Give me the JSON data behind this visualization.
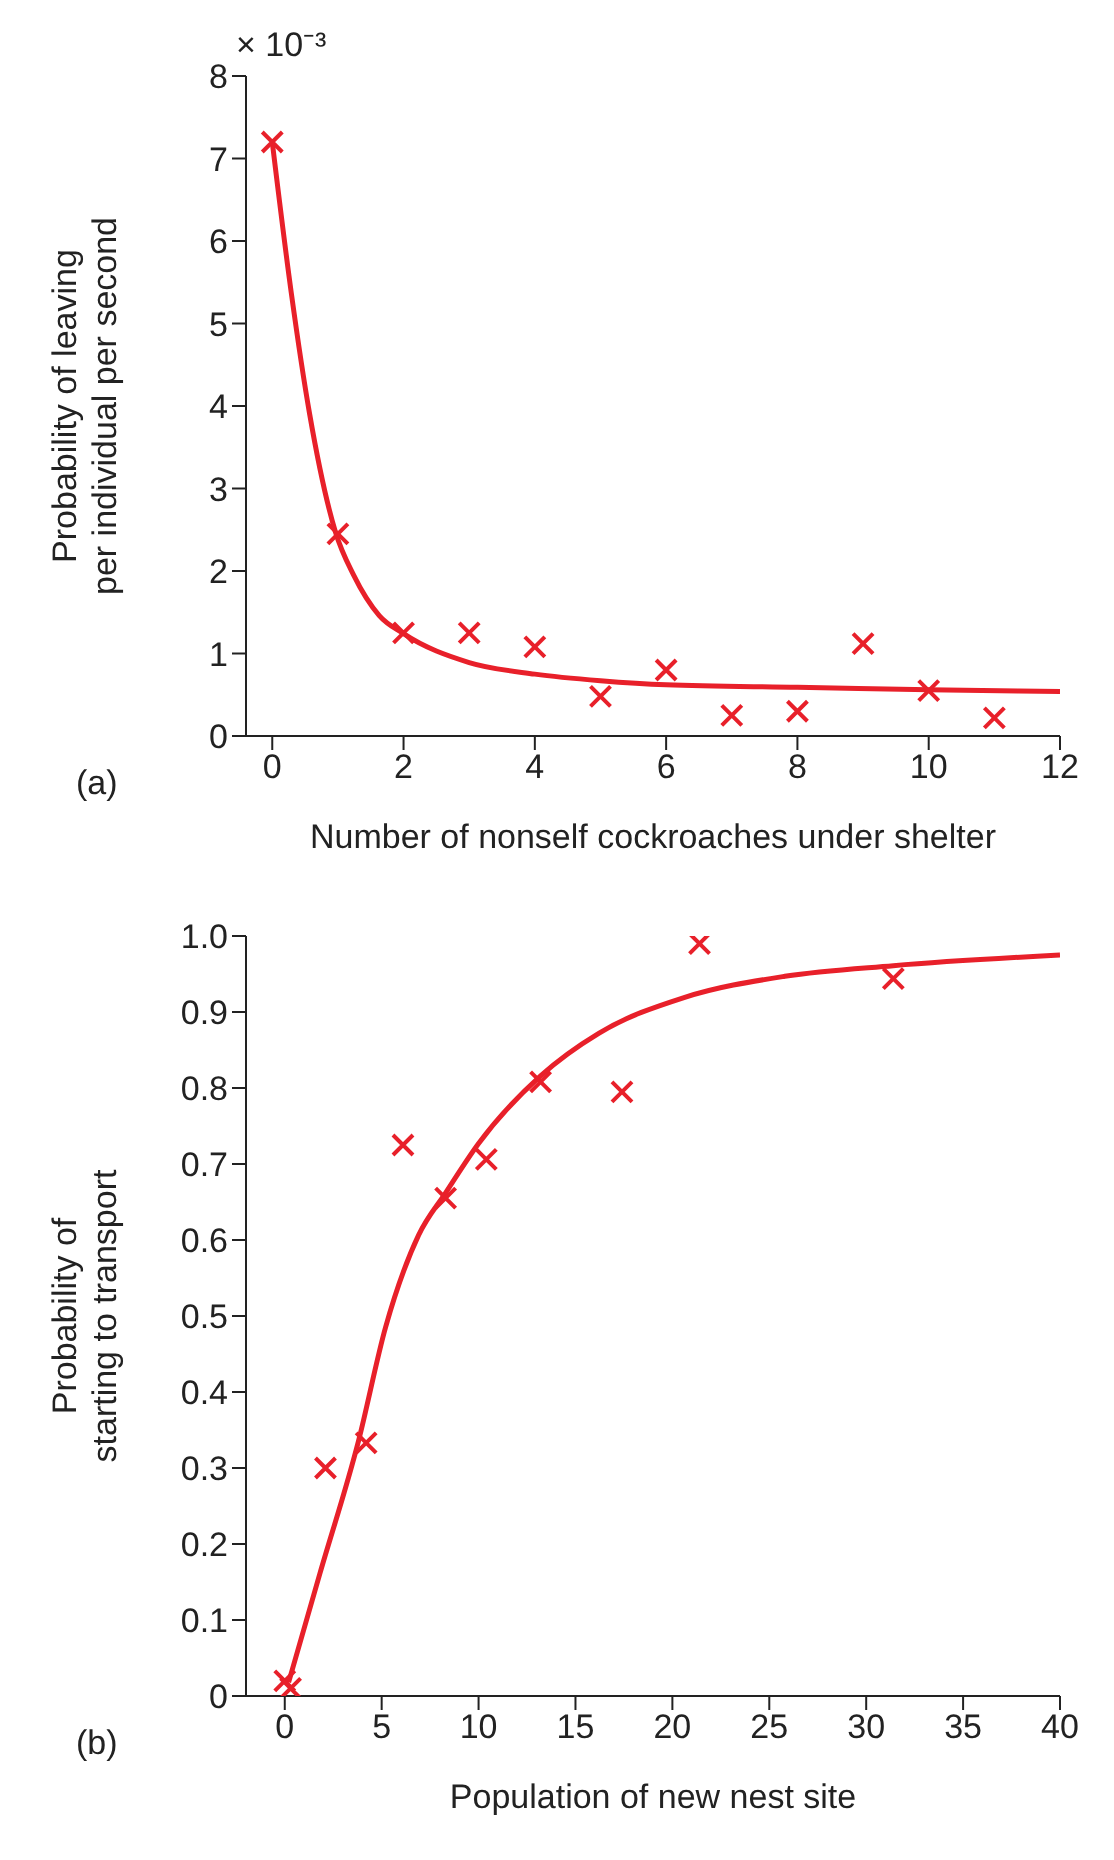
{
  "chart_data": [
    {
      "type": "scatter",
      "xlabel": "Number of nonself cockroaches under shelter",
      "ylabel": "Probability of leaving\nper individual per second",
      "annotations": [
        "× 10⁻³",
        "(a)"
      ],
      "xlim": [
        -0.4,
        12
      ],
      "xticks": [
        0,
        2,
        4,
        6,
        8,
        10,
        12
      ],
      "ylim": [
        0,
        8
      ],
      "yticks": [
        0,
        1,
        2,
        3,
        4,
        5,
        6,
        7,
        8
      ],
      "grid": false,
      "legend": false,
      "series": [
        {
          "type": "scatter",
          "color": "#e8202a",
          "marker": "cross",
          "x": [
            0,
            1,
            2,
            3,
            4,
            5,
            6,
            7,
            8,
            9,
            10,
            11
          ],
          "values": [
            7.2,
            2.45,
            1.25,
            1.25,
            1.08,
            0.48,
            0.8,
            0.25,
            0.3,
            1.12,
            0.55,
            0.22
          ]
        },
        {
          "type": "line",
          "color": "#e8202a",
          "marker": "none",
          "line_style": "solid",
          "x": [
            0,
            0.29,
            0.57,
            0.96,
            1.24,
            1.63,
            2,
            3,
            4,
            5,
            6,
            8,
            10,
            12
          ],
          "values": [
            7.2,
            5.37,
            3.9,
            2.48,
            1.95,
            1.46,
            1.24,
            0.89,
            0.75,
            0.67,
            0.62,
            0.59,
            0.56,
            0.54
          ]
        }
      ]
    },
    {
      "type": "scatter",
      "xlabel": "Population of new nest site",
      "ylabel": "Probability of\nstarting to transport",
      "annotations": [
        "(b)"
      ],
      "xlim": [
        -2,
        40
      ],
      "xticks": [
        0,
        5,
        10,
        15,
        20,
        25,
        30,
        35,
        40
      ],
      "ylim": [
        0,
        1
      ],
      "yticks": [
        0,
        0.1,
        0.2,
        0.3,
        0.4,
        0.5,
        0.6,
        0.7,
        0.8,
        0.9,
        {
          "value": 1,
          "label": "1.0"
        }
      ],
      "grid": false,
      "legend": false,
      "series": [
        {
          "type": "scatter",
          "color": "#e8202a",
          "marker": "cross",
          "x": [
            0,
            0.3,
            2.1,
            4.2,
            6.1,
            8.3,
            10.4,
            13.2,
            17.4,
            21.4,
            31.4
          ],
          "values": [
            0.02,
            0.01,
            0.3,
            0.333,
            0.725,
            0.655,
            0.706,
            0.808,
            0.795,
            0.99,
            0.944
          ]
        },
        {
          "type": "line",
          "color": "#e8202a",
          "marker": "none",
          "line_style": "solid",
          "x": [
            0.2,
            1.8,
            3.8,
            5.2,
            6.9,
            8.3,
            10,
            13.2,
            16.2,
            20.6,
            25.8,
            31.4,
            40
          ],
          "values": [
            0.018,
            0.16,
            0.335,
            0.485,
            0.606,
            0.662,
            0.727,
            0.816,
            0.872,
            0.919,
            0.947,
            0.961,
            0.975
          ]
        }
      ]
    }
  ]
}
